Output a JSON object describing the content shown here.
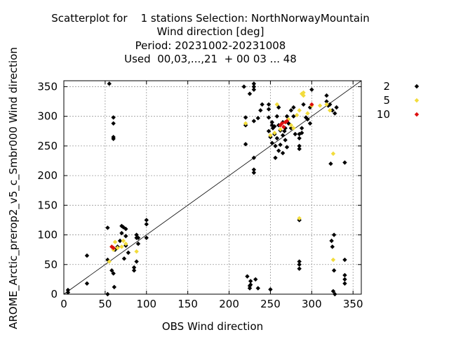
{
  "title_lines": [
    "Scatterplot for    1 stations Selection: NorthNorwayMountain",
    "Wind direction [deg]",
    "Period: 20231002-20231008",
    "Used  00,03,...,21  + 00 03 ... 48"
  ],
  "colors": {
    "black": "#000000",
    "yellow": "#f2dc3c",
    "red": "#dd1010",
    "grid": "#999999"
  },
  "chart_data": {
    "type": "scatter",
    "xlabel": "OBS Wind direction",
    "ylabel": "AROME_Arctic_prerop2_v5_c_Smbr000 Wind direction",
    "xlim": [
      0,
      360
    ],
    "ylim": [
      0,
      360
    ],
    "xticks": [
      0,
      50,
      100,
      150,
      200,
      250,
      300,
      350
    ],
    "yticks": [
      0,
      50,
      100,
      150,
      200,
      250,
      300,
      350
    ],
    "grid": true,
    "legend_position": "right",
    "reference_line": "y=x",
    "series": [
      {
        "name": "2",
        "color": "#000000",
        "points": [
          [
            5,
            3
          ],
          [
            5,
            7
          ],
          [
            28,
            18
          ],
          [
            28,
            65
          ],
          [
            53,
            0
          ],
          [
            53,
            58
          ],
          [
            53,
            112
          ],
          [
            55,
            355
          ],
          [
            58,
            40
          ],
          [
            60,
            35
          ],
          [
            60,
            298
          ],
          [
            60,
            288
          ],
          [
            60,
            265
          ],
          [
            60,
            262
          ],
          [
            61,
            12
          ],
          [
            62,
            75
          ],
          [
            65,
            80
          ],
          [
            68,
            90
          ],
          [
            70,
            115
          ],
          [
            70,
            103
          ],
          [
            72,
            113
          ],
          [
            73,
            60
          ],
          [
            75,
            98
          ],
          [
            75,
            110
          ],
          [
            75,
            82
          ],
          [
            78,
            70
          ],
          [
            85,
            40
          ],
          [
            85,
            45
          ],
          [
            88,
            55
          ],
          [
            88,
            95
          ],
          [
            88,
            100
          ],
          [
            90,
            95
          ],
          [
            90,
            85
          ],
          [
            100,
            118
          ],
          [
            100,
            125
          ],
          [
            100,
            95
          ],
          [
            218,
            350
          ],
          [
            220,
            298
          ],
          [
            220,
            253
          ],
          [
            220,
            285
          ],
          [
            222,
            30
          ],
          [
            225,
            338
          ],
          [
            225,
            10
          ],
          [
            225,
            14
          ],
          [
            226,
            22
          ],
          [
            226,
            16
          ],
          [
            230,
            345
          ],
          [
            230,
            355
          ],
          [
            230,
            350
          ],
          [
            230,
            292
          ],
          [
            230,
            230
          ],
          [
            230,
            210
          ],
          [
            230,
            205
          ],
          [
            232,
            25
          ],
          [
            235,
            10
          ],
          [
            235,
            297
          ],
          [
            238,
            310
          ],
          [
            240,
            320
          ],
          [
            248,
            320
          ],
          [
            248,
            312
          ],
          [
            248,
            275
          ],
          [
            248,
            298
          ],
          [
            250,
            8
          ],
          [
            250,
            265
          ],
          [
            252,
            285
          ],
          [
            252,
            255
          ],
          [
            252,
            290
          ],
          [
            253,
            280
          ],
          [
            255,
            283
          ],
          [
            255,
            270
          ],
          [
            256,
            250
          ],
          [
            256,
            230
          ],
          [
            258,
            300
          ],
          [
            258,
            263
          ],
          [
            260,
            285
          ],
          [
            260,
            315
          ],
          [
            260,
            242
          ],
          [
            262,
            276
          ],
          [
            262,
            252
          ],
          [
            265,
            290
          ],
          [
            265,
            268
          ],
          [
            265,
            238
          ],
          [
            267,
            275
          ],
          [
            268,
            280
          ],
          [
            268,
            260
          ],
          [
            270,
            300
          ],
          [
            270,
            248
          ],
          [
            272,
            288
          ],
          [
            275,
            280
          ],
          [
            275,
            310
          ],
          [
            278,
            315
          ],
          [
            278,
            300
          ],
          [
            280,
            270
          ],
          [
            285,
            263
          ],
          [
            285,
            250
          ],
          [
            285,
            245
          ],
          [
            285,
            270
          ],
          [
            285,
            55
          ],
          [
            285,
            50
          ],
          [
            285,
            43
          ],
          [
            285,
            125
          ],
          [
            288,
            280
          ],
          [
            288,
            272
          ],
          [
            290,
            320
          ],
          [
            293,
            298
          ],
          [
            295,
            295
          ],
          [
            298,
            288
          ],
          [
            298,
            315
          ],
          [
            300,
            345
          ],
          [
            318,
            335
          ],
          [
            318,
            325
          ],
          [
            320,
            318
          ],
          [
            322,
            320
          ],
          [
            323,
            220
          ],
          [
            324,
            90
          ],
          [
            325,
            80
          ],
          [
            325,
            310
          ],
          [
            326,
            5
          ],
          [
            327,
            100
          ],
          [
            327,
            40
          ],
          [
            328,
            0
          ],
          [
            328,
            305
          ],
          [
            330,
            315
          ],
          [
            340,
            58
          ],
          [
            340,
            222
          ],
          [
            340,
            32
          ],
          [
            340,
            25
          ],
          [
            340,
            18
          ]
        ]
      },
      {
        "name": "5",
        "color": "#f2dc3c",
        "points": [
          [
            55,
            55
          ],
          [
            58,
            80
          ],
          [
            60,
            75
          ],
          [
            62,
            88
          ],
          [
            65,
            78
          ],
          [
            70,
            80
          ],
          [
            72,
            90
          ],
          [
            75,
            85
          ],
          [
            88,
            72
          ],
          [
            220,
            288
          ],
          [
            250,
            268
          ],
          [
            255,
            272
          ],
          [
            258,
            320
          ],
          [
            262,
            278
          ],
          [
            268,
            290
          ],
          [
            272,
            295
          ],
          [
            275,
            285
          ],
          [
            278,
            280
          ],
          [
            282,
            302
          ],
          [
            285,
            310
          ],
          [
            285,
            128
          ],
          [
            288,
            338
          ],
          [
            290,
            335
          ],
          [
            290,
            340
          ],
          [
            295,
            305
          ],
          [
            300,
            318
          ],
          [
            310,
            318
          ],
          [
            318,
            320
          ],
          [
            322,
            310
          ],
          [
            326,
            237
          ],
          [
            326,
            58
          ]
        ]
      },
      {
        "name": "10",
        "color": "#dd1010",
        "points": [
          [
            58,
            80
          ],
          [
            60,
            78
          ],
          [
            262,
            285
          ],
          [
            264,
            288
          ],
          [
            266,
            282
          ],
          [
            268,
            290
          ],
          [
            270,
            292
          ],
          [
            300,
            320
          ]
        ]
      }
    ]
  }
}
